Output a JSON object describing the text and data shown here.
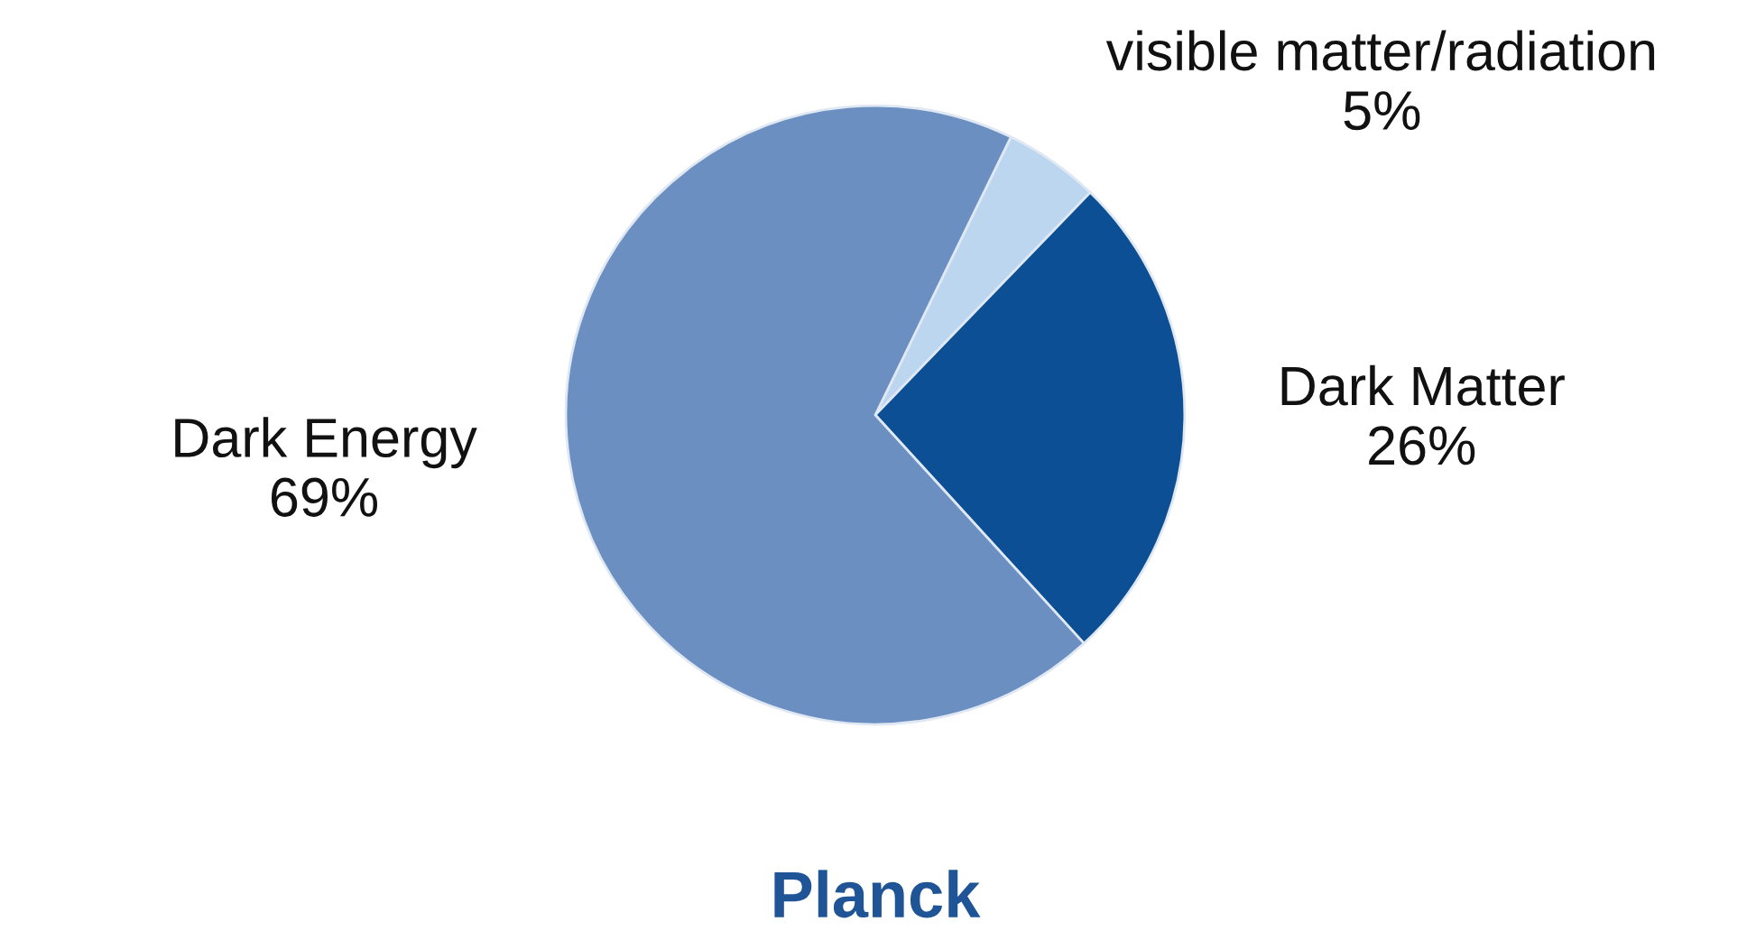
{
  "chart_data": {
    "type": "pie",
    "title": "Planck",
    "categories": [
      "visible matter/radiation",
      "Dark Matter",
      "Dark Energy"
    ],
    "values": [
      5,
      26,
      69
    ],
    "value_labels": [
      "5%",
      "26%",
      "69%"
    ],
    "colors": [
      "#bcd6ef",
      "#0d4f94",
      "#6a8fc0"
    ]
  }
}
